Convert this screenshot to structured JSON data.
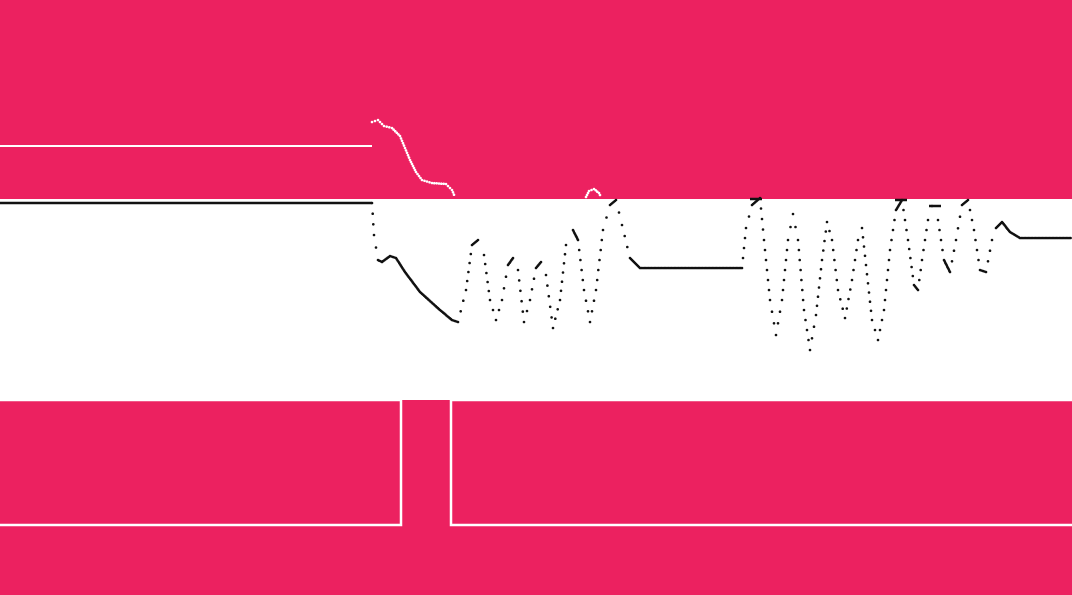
{
  "colors": {
    "background": "#EC2160",
    "band": "#FFFFFF",
    "outline": "#FFFFFF",
    "trace_on_band": "#111111",
    "trace_on_background": "#FFFFFF"
  }
}
